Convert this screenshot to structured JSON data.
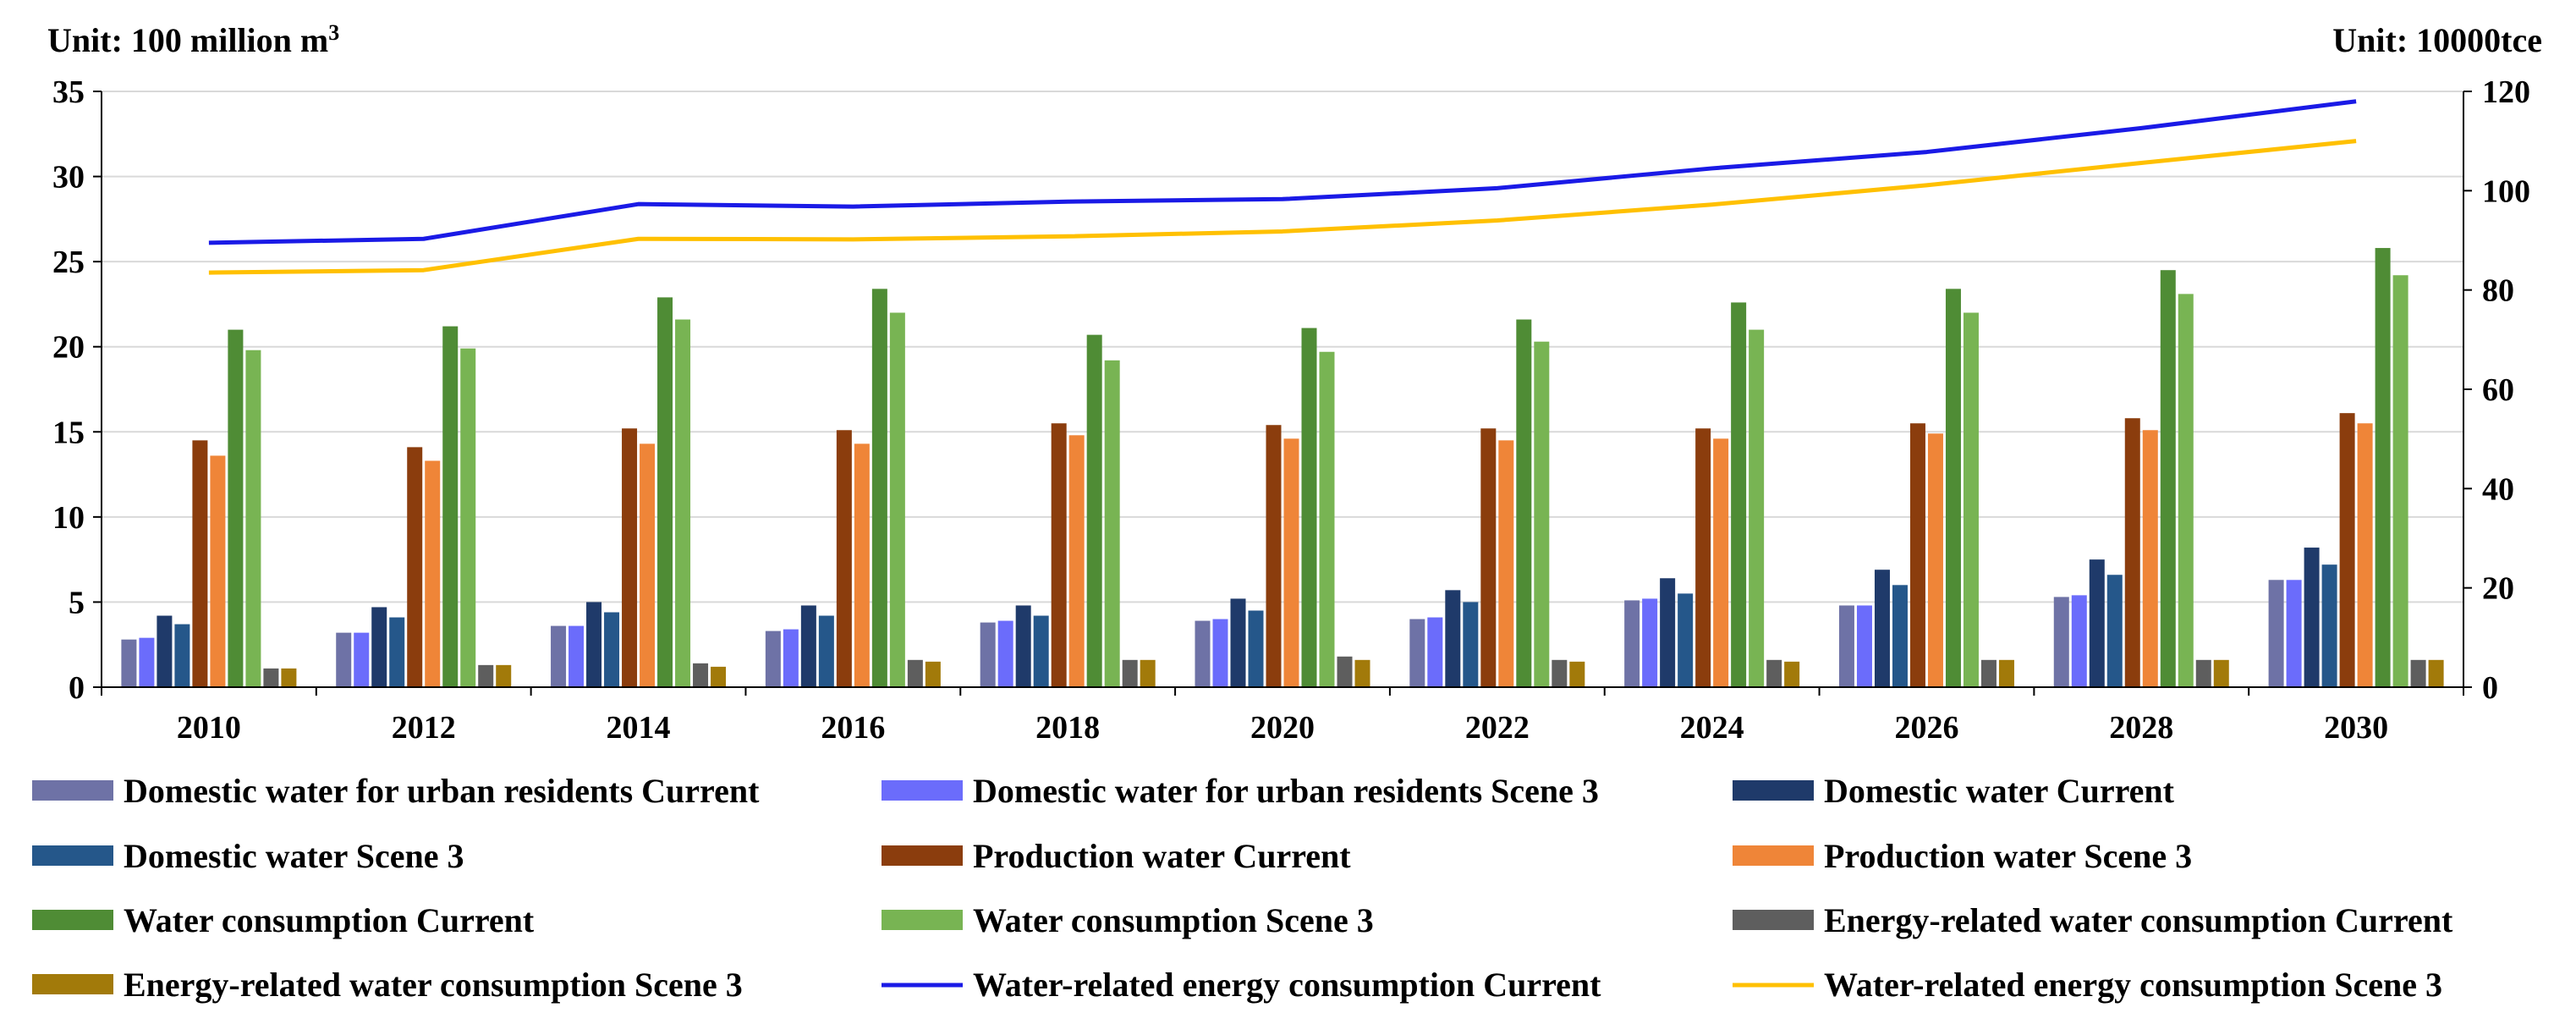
{
  "chart_data": {
    "type": "bar",
    "units": {
      "left_prefix": "Unit: 100 million m",
      "left_sup": "3",
      "right": "Unit: 10000tce"
    },
    "categories": [
      "2010",
      "2012",
      "2014",
      "2016",
      "2018",
      "2020",
      "2022",
      "2024",
      "2026",
      "2028",
      "2030"
    ],
    "y_left": {
      "min": 0,
      "max": 35,
      "step": 5
    },
    "y_right": {
      "min": 0,
      "max": 120,
      "step": 20
    },
    "bar_series": [
      {
        "name": "Domestic water for urban residents Current",
        "color": "#6e72a6",
        "values": [
          2.8,
          3.2,
          3.6,
          3.3,
          3.8,
          3.9,
          4.0,
          5.1,
          4.8,
          5.3,
          6.3
        ]
      },
      {
        "name": "Domestic water for urban residents Scene 3",
        "color": "#6b6cfb",
        "values": [
          2.9,
          3.2,
          3.6,
          3.4,
          3.9,
          4.0,
          4.1,
          5.2,
          4.8,
          5.4,
          6.3
        ]
      },
      {
        "name": "Domestic water Current",
        "color": "#1f3a6a",
        "values": [
          4.2,
          4.7,
          5.0,
          4.8,
          4.8,
          5.2,
          5.7,
          6.4,
          6.9,
          7.5,
          8.2
        ]
      },
      {
        "name": "Domestic water Scene 3",
        "color": "#25578a",
        "values": [
          3.7,
          4.1,
          4.4,
          4.2,
          4.2,
          4.5,
          5.0,
          5.5,
          6.0,
          6.6,
          7.2
        ]
      },
      {
        "name": "Production water Current",
        "color": "#8b3d0d",
        "values": [
          14.5,
          14.1,
          15.2,
          15.1,
          15.5,
          15.4,
          15.2,
          15.2,
          15.5,
          15.8,
          16.1
        ]
      },
      {
        "name": "Production water Scene 3",
        "color": "#ef8538",
        "values": [
          13.6,
          13.3,
          14.3,
          14.3,
          14.8,
          14.6,
          14.5,
          14.6,
          14.9,
          15.1,
          15.5
        ]
      },
      {
        "name": "Water consumption Current",
        "color": "#4f8c35",
        "values": [
          21.0,
          21.2,
          22.9,
          23.4,
          20.7,
          21.1,
          21.6,
          22.6,
          23.4,
          24.5,
          25.8
        ]
      },
      {
        "name": "Water consumption Scene 3",
        "color": "#78b453",
        "values": [
          19.8,
          19.9,
          21.6,
          22.0,
          19.2,
          19.7,
          20.3,
          21.0,
          22.0,
          23.1,
          24.2
        ]
      },
      {
        "name": "Energy-related water consumption Current",
        "color": "#5e5e5e",
        "values": [
          1.1,
          1.3,
          1.4,
          1.6,
          1.6,
          1.8,
          1.6,
          1.6,
          1.6,
          1.6,
          1.6
        ]
      },
      {
        "name": "Energy-related water consumption Scene 3",
        "color": "#a27a0a",
        "values": [
          1.1,
          1.3,
          1.2,
          1.5,
          1.6,
          1.6,
          1.5,
          1.5,
          1.6,
          1.6,
          1.6
        ]
      }
    ],
    "line_series": [
      {
        "name": "Water-related energy consumption Current",
        "color": "#1a1ae6",
        "axis": "right",
        "values": [
          89.5,
          90.3,
          97.3,
          96.8,
          97.8,
          98.3,
          100.5,
          104.5,
          107.8,
          112.6,
          118.0
        ]
      },
      {
        "name": "Water-related energy consumption Scene 3",
        "color": "#ffc000",
        "axis": "right",
        "values": [
          83.5,
          84.0,
          90.3,
          90.2,
          90.8,
          91.8,
          94.0,
          97.2,
          101.1,
          105.6,
          110.0
        ]
      }
    ],
    "legend_position": "bottom"
  }
}
